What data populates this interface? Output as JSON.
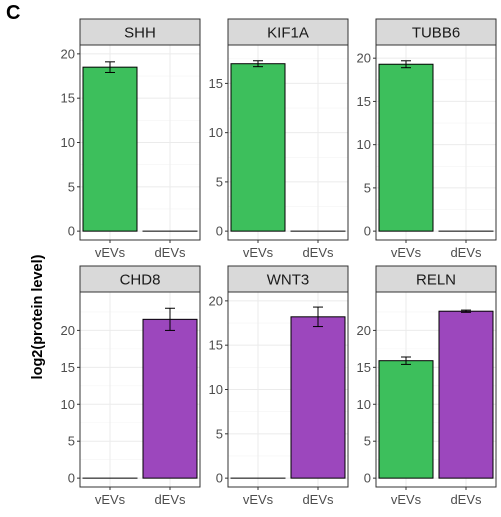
{
  "figure": {
    "panel_letter": "C",
    "ylabel": "log2(protein level)"
  },
  "colors": {
    "vEVs": "#3dbf5c",
    "dEVs": "#9c47bd",
    "strip": "#d9d9d9",
    "grid": "#ebebeb"
  },
  "chart_data": [
    {
      "type": "bar",
      "facet": "SHH",
      "categories": [
        "vEVs",
        "dEVs"
      ],
      "values": [
        18.5,
        0
      ],
      "errors": [
        0.6,
        0
      ],
      "ylim": [
        0,
        20
      ],
      "yticks": [
        0,
        5,
        10,
        15,
        20
      ]
    },
    {
      "type": "bar",
      "facet": "KIF1A",
      "categories": [
        "vEVs",
        "dEVs"
      ],
      "values": [
        17.0,
        0
      ],
      "errors": [
        0.3,
        0
      ],
      "ylim": [
        0,
        18
      ],
      "yticks": [
        0,
        5,
        10,
        15
      ]
    },
    {
      "type": "bar",
      "facet": "TUBB6",
      "categories": [
        "vEVs",
        "dEVs"
      ],
      "values": [
        19.3,
        0
      ],
      "errors": [
        0.4,
        0
      ],
      "ylim": [
        0,
        20.5
      ],
      "yticks": [
        0,
        5,
        10,
        15,
        20
      ]
    },
    {
      "type": "bar",
      "facet": "CHD8",
      "categories": [
        "vEVs",
        "dEVs"
      ],
      "values": [
        0,
        21.5
      ],
      "errors": [
        0,
        1.5
      ],
      "ylim": [
        0,
        24
      ],
      "yticks": [
        0,
        5,
        10,
        15,
        20
      ]
    },
    {
      "type": "bar",
      "facet": "WNT3",
      "categories": [
        "vEVs",
        "dEVs"
      ],
      "values": [
        0,
        18.2
      ],
      "errors": [
        0,
        1.1
      ],
      "ylim": [
        0,
        20
      ],
      "yticks": [
        0,
        5,
        10,
        15,
        20
      ]
    },
    {
      "type": "bar",
      "facet": "RELN",
      "categories": [
        "vEVs",
        "dEVs"
      ],
      "values": [
        15.9,
        22.6
      ],
      "errors": [
        0.5,
        0.15
      ],
      "ylim": [
        0,
        24
      ],
      "yticks": [
        0,
        5,
        10,
        15,
        20
      ]
    }
  ]
}
